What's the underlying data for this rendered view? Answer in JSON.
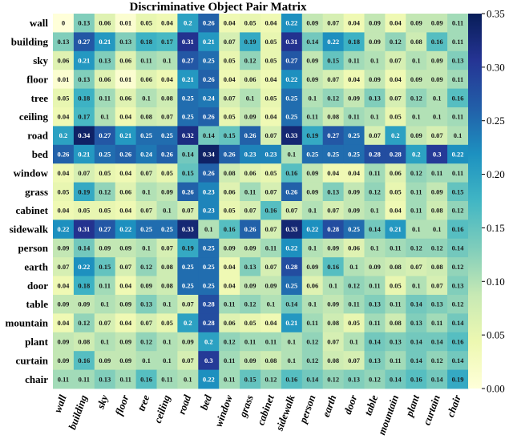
{
  "chart_data": {
    "type": "heatmap",
    "title": "Discriminative Object Pair Matrix",
    "rows": [
      "wall",
      "building",
      "sky",
      "floor",
      "tree",
      "ceiling",
      "road",
      "bed",
      "window",
      "grass",
      "cabinet",
      "sidewalk",
      "person",
      "earth",
      "door",
      "table",
      "mountain",
      "plant",
      "curtain",
      "chair"
    ],
    "cols": [
      "wall",
      "building",
      "sky",
      "floor",
      "tree",
      "ceiling",
      "road",
      "bed",
      "window",
      "grass",
      "cabinet",
      "sidewalk",
      "person",
      "earth",
      "door",
      "table",
      "mountain",
      "plant",
      "curtain",
      "chair"
    ],
    "values": [
      [
        0,
        0.13,
        0.06,
        0.01,
        0.05,
        0.04,
        0.2,
        0.26,
        0.04,
        0.05,
        0.04,
        0.22,
        0.09,
        0.07,
        0.04,
        0.09,
        0.04,
        0.09,
        0.09,
        0.11
      ],
      [
        0.13,
        0.27,
        0.21,
        0.13,
        0.18,
        0.17,
        0.31,
        0.21,
        0.07,
        0.19,
        0.05,
        0.31,
        0.14,
        0.22,
        0.18,
        0.09,
        0.12,
        0.08,
        0.16,
        0.11
      ],
      [
        0.06,
        0.21,
        0.13,
        0.06,
        0.11,
        0.1,
        0.27,
        0.25,
        0.05,
        0.12,
        0.05,
        0.27,
        0.09,
        0.15,
        0.11,
        0.1,
        0.07,
        0.1,
        0.09,
        0.13
      ],
      [
        0.01,
        0.13,
        0.06,
        0.01,
        0.06,
        0.04,
        0.21,
        0.26,
        0.04,
        0.06,
        0.04,
        0.22,
        0.09,
        0.07,
        0.04,
        0.09,
        0.04,
        0.09,
        0.09,
        0.11
      ],
      [
        0.05,
        0.18,
        0.11,
        0.06,
        0.1,
        0.08,
        0.25,
        0.24,
        0.07,
        0.1,
        0.05,
        0.25,
        0.1,
        0.12,
        0.09,
        0.13,
        0.07,
        0.12,
        0.1,
        0.16
      ],
      [
        0.04,
        0.17,
        0.1,
        0.04,
        0.08,
        0.07,
        0.25,
        0.26,
        0.05,
        0.09,
        0.04,
        0.25,
        0.11,
        0.08,
        0.11,
        0.1,
        0.05,
        0.1,
        0.1,
        0.11
      ],
      [
        0.2,
        0.34,
        0.27,
        0.21,
        0.25,
        0.25,
        0.32,
        0.14,
        0.15,
        0.26,
        0.07,
        0.33,
        0.19,
        0.27,
        0.25,
        0.07,
        0.2,
        0.09,
        0.07,
        0.1
      ],
      [
        0.26,
        0.21,
        0.25,
        0.26,
        0.24,
        0.26,
        0.14,
        0.34,
        0.26,
        0.23,
        0.23,
        0.1,
        0.25,
        0.25,
        0.25,
        0.28,
        0.28,
        0.2,
        0.3,
        0.22
      ],
      [
        0.04,
        0.07,
        0.05,
        0.04,
        0.07,
        0.05,
        0.15,
        0.26,
        0.08,
        0.06,
        0.05,
        0.16,
        0.09,
        0.04,
        0.04,
        0.11,
        0.06,
        0.12,
        0.11,
        0.11
      ],
      [
        0.05,
        0.19,
        0.12,
        0.06,
        0.1,
        0.09,
        0.26,
        0.23,
        0.06,
        0.11,
        0.07,
        0.26,
        0.09,
        0.13,
        0.09,
        0.12,
        0.05,
        0.11,
        0.09,
        0.15
      ],
      [
        0.04,
        0.05,
        0.05,
        0.04,
        0.07,
        0.1,
        0.07,
        0.23,
        0.05,
        0.07,
        0.16,
        0.07,
        0.1,
        0.07,
        0.09,
        0.1,
        0.04,
        0.11,
        0.08,
        0.12
      ],
      [
        0.22,
        0.31,
        0.27,
        0.22,
        0.25,
        0.25,
        0.33,
        0.1,
        0.16,
        0.26,
        0.07,
        0.33,
        0.22,
        0.28,
        0.25,
        0.14,
        0.21,
        0.1,
        0.1,
        0.16
      ],
      [
        0.09,
        0.14,
        0.09,
        0.09,
        0.1,
        0.07,
        0.19,
        0.25,
        0.09,
        0.09,
        0.11,
        0.22,
        0.1,
        0.09,
        0.06,
        0.1,
        0.11,
        0.12,
        0.12,
        0.14
      ],
      [
        0.07,
        0.22,
        0.15,
        0.07,
        0.12,
        0.08,
        0.25,
        0.25,
        0.04,
        0.13,
        0.07,
        0.28,
        0.09,
        0.16,
        0.1,
        0.09,
        0.08,
        0.07,
        0.08,
        0.12
      ],
      [
        0.04,
        0.18,
        0.11,
        0.04,
        0.09,
        0.08,
        0.25,
        0.25,
        0.04,
        0.09,
        0.09,
        0.25,
        0.06,
        0.1,
        0.12,
        0.11,
        0.05,
        0.1,
        0.07,
        0.13
      ],
      [
        0.09,
        0.09,
        0.1,
        0.09,
        0.13,
        0.1,
        0.07,
        0.28,
        0.11,
        0.12,
        0.1,
        0.14,
        0.1,
        0.09,
        0.11,
        0.13,
        0.11,
        0.14,
        0.13,
        0.12
      ],
      [
        0.04,
        0.12,
        0.07,
        0.04,
        0.07,
        0.05,
        0.2,
        0.28,
        0.06,
        0.05,
        0.04,
        0.21,
        0.11,
        0.08,
        0.05,
        0.11,
        0.08,
        0.13,
        0.11,
        0.14
      ],
      [
        0.09,
        0.08,
        0.1,
        0.09,
        0.12,
        0.1,
        0.09,
        0.2,
        0.12,
        0.11,
        0.11,
        0.1,
        0.12,
        0.07,
        0.1,
        0.14,
        0.13,
        0.14,
        0.14,
        0.16
      ],
      [
        0.09,
        0.16,
        0.09,
        0.09,
        0.1,
        0.1,
        0.07,
        0.3,
        0.11,
        0.09,
        0.08,
        0.1,
        0.12,
        0.08,
        0.07,
        0.13,
        0.11,
        0.14,
        0.12,
        0.14
      ],
      [
        0.11,
        0.11,
        0.13,
        0.11,
        0.16,
        0.11,
        0.1,
        0.22,
        0.11,
        0.15,
        0.12,
        0.16,
        0.14,
        0.12,
        0.13,
        0.12,
        0.14,
        0.16,
        0.14,
        0.19
      ]
    ],
    "colorbar": {
      "min": 0,
      "max": 0.35,
      "ticks": [
        "0.00",
        "0.05",
        "0.10",
        "0.15",
        "0.20",
        "0.25",
        "0.30",
        "0.35"
      ]
    },
    "colormap": "YlGnBu",
    "legend_position": "right",
    "grid": false
  }
}
